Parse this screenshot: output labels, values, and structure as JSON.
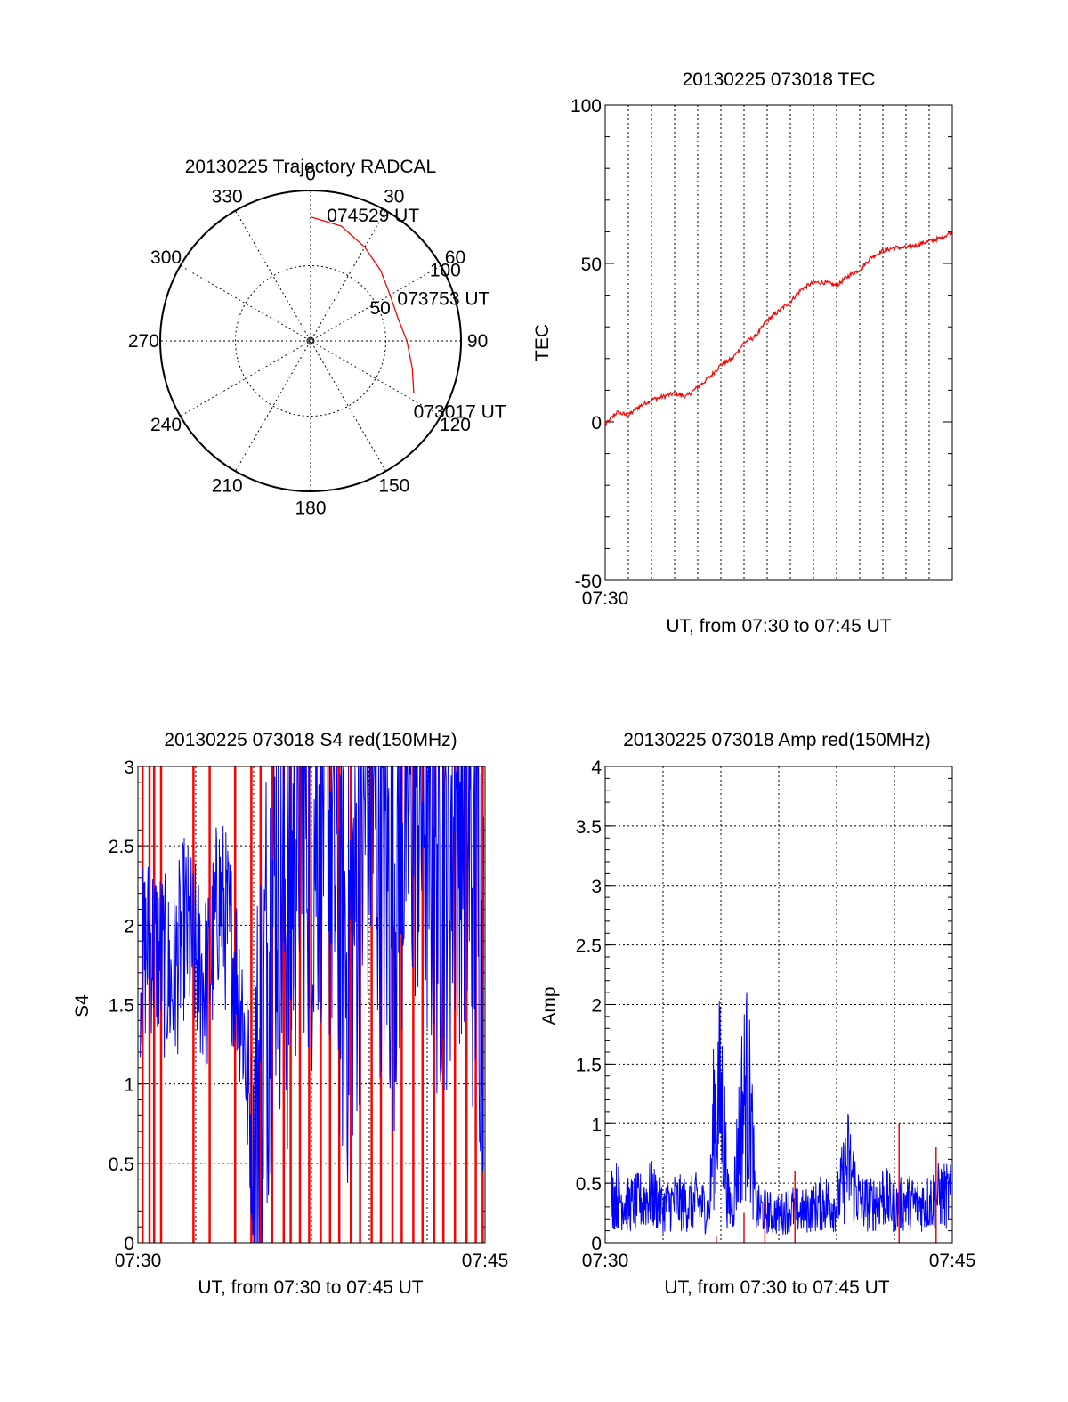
{
  "colors": {
    "axis": "#000000",
    "grid": "#000000",
    "red": "#ff0000",
    "blue": "#0000ff",
    "background": "#ffffff"
  },
  "chart_data": [
    {
      "id": "trajectory",
      "type": "polar",
      "title": "20130225 Trajectory RADCAL",
      "angle_labels": [
        {
          "angle": 0,
          "label": "0"
        },
        {
          "angle": 30,
          "label": "30"
        },
        {
          "angle": 60,
          "label": "60"
        },
        {
          "angle": 90,
          "label": "90"
        },
        {
          "angle": 120,
          "label": "120"
        },
        {
          "angle": 150,
          "label": "150"
        },
        {
          "angle": 180,
          "label": "180"
        },
        {
          "angle": 210,
          "label": "210"
        },
        {
          "angle": 240,
          "label": "240"
        },
        {
          "angle": 270,
          "label": "270"
        },
        {
          "angle": 300,
          "label": "300"
        },
        {
          "angle": 330,
          "label": "330"
        }
      ],
      "radial_labels": [
        {
          "value": 50,
          "label": "50"
        },
        {
          "value": 100,
          "label": "100"
        }
      ],
      "rmax": 100,
      "series": [
        {
          "color": "red",
          "points": [
            {
              "az": 0.0,
              "zd": 82.5
            },
            {
              "az": 15.0,
              "zd": 79.0
            },
            {
              "az": 30.0,
              "zd": 72.0
            },
            {
              "az": 45.0,
              "zd": 66.0
            },
            {
              "az": 60.0,
              "zd": 61.0
            },
            {
              "az": 75.0,
              "zd": 60.0
            },
            {
              "az": 90.0,
              "zd": 64.0
            },
            {
              "az": 105.0,
              "zd": 70.0
            },
            {
              "az": 117.0,
              "zd": 77.0
            }
          ]
        }
      ],
      "annotations": [
        {
          "label": "074529 UT",
          "az": 8.0,
          "zd": 86.0
        },
        {
          "label": "073753 UT",
          "az": 63.0,
          "zd": 66.0
        },
        {
          "label": "073017 UT",
          "az": 123.0,
          "zd": 83.0
        }
      ]
    },
    {
      "id": "tec",
      "type": "line",
      "title": "20130225 073018 TEC",
      "xlabel": "UT, from 07:30 to 07:45 UT",
      "ylabel": "TEC",
      "xlim": [
        0,
        15
      ],
      "ylim": [
        -50,
        100
      ],
      "x_unit": "minutes after 07:30 UT",
      "x_ticks": [
        {
          "value": 0,
          "label": "07:30"
        }
      ],
      "y_ticks": [
        {
          "value": -50,
          "label": "-50"
        },
        {
          "value": 0,
          "label": "0"
        },
        {
          "value": 50,
          "label": "50"
        },
        {
          "value": 100,
          "label": "100"
        }
      ],
      "grid": "vertical dotted",
      "x_gridlines": [
        1,
        2,
        3,
        4,
        5,
        6,
        7,
        8,
        9,
        10,
        11,
        12,
        13,
        14
      ],
      "series": [
        {
          "color": "red",
          "x": [
            0.0,
            0.5,
            1.0,
            1.5,
            2.0,
            2.5,
            3.0,
            3.5,
            4.0,
            4.5,
            5.0,
            5.5,
            6.0,
            6.5,
            7.0,
            7.5,
            8.0,
            8.5,
            9.0,
            9.5,
            10.0,
            10.5,
            11.0,
            11.5,
            12.0,
            12.5,
            13.0,
            13.5,
            14.0,
            14.5,
            15.0
          ],
          "y": [
            -1,
            3,
            2,
            5,
            7,
            8,
            9,
            8,
            11,
            14,
            18,
            20,
            25,
            27,
            32,
            35,
            38,
            42,
            44,
            44,
            43,
            46,
            48,
            52,
            54,
            55,
            55,
            56,
            57,
            58,
            60
          ]
        }
      ]
    },
    {
      "id": "s4",
      "type": "line",
      "title": "20130225 073018 S4 red(150MHz)",
      "xlabel": "UT, from 07:30 to 07:45 UT",
      "ylabel": "S4",
      "xlim": [
        0,
        15
      ],
      "ylim": [
        0,
        3
      ],
      "x_unit": "minutes after 07:30 UT",
      "x_ticks": [
        {
          "value": 0,
          "label": "07:30"
        },
        {
          "value": 15,
          "label": "07:45"
        }
      ],
      "y_ticks": [
        {
          "value": 0,
          "label": "0"
        },
        {
          "value": 0.5,
          "label": "0.5"
        },
        {
          "value": 1,
          "label": "1"
        },
        {
          "value": 1.5,
          "label": "1.5"
        },
        {
          "value": 2,
          "label": "2"
        },
        {
          "value": 2.5,
          "label": "2.5"
        },
        {
          "value": 3,
          "label": "3"
        }
      ],
      "grid": "dotted",
      "series": [
        {
          "color": "blue",
          "x": [
            0.0,
            0.5,
            1.0,
            1.5,
            2.0,
            2.5,
            3.0,
            3.5,
            4.0,
            4.5,
            5.0,
            5.5,
            6.0,
            6.5,
            7.0,
            7.5,
            8.0,
            8.5,
            9.0,
            9.5,
            10.0,
            10.5,
            11.0,
            11.5,
            12.0,
            12.5,
            13.0,
            13.5,
            14.0,
            14.5,
            15.0
          ],
          "y": [
            1.7,
            1.9,
            1.8,
            1.6,
            2.0,
            1.8,
            1.6,
            2.2,
            1.9,
            1.5,
            0.5,
            1.6,
            2.5,
            2.0,
            3.0,
            2.6,
            3.0,
            2.4,
            1.8,
            2.3,
            3.0,
            2.6,
            2.2,
            2.8,
            3.0,
            2.7,
            2.4,
            2.6,
            2.9,
            2.3,
            1.9
          ]
        }
      ],
      "red_spikes": {
        "color": "red",
        "x": [
          0.2,
          0.5,
          0.7,
          1.0,
          2.4,
          3.1,
          4.2,
          4.9,
          5.3,
          5.8,
          6.3,
          6.6,
          7.0,
          7.4,
          7.9,
          8.3,
          8.7,
          9.2,
          9.6,
          10.1,
          10.5,
          11.0,
          11.4,
          11.9,
          12.3,
          12.8,
          13.2,
          13.7,
          14.2,
          14.6,
          14.9
        ],
        "ymax": 3
      }
    },
    {
      "id": "amp",
      "type": "line",
      "title": "20130225 073018 Amp red(150MHz)",
      "xlabel": "UT, from 07:30 to 07:45 UT",
      "ylabel": "Amp",
      "xlim": [
        0,
        15
      ],
      "ylim": [
        0,
        4
      ],
      "x_unit": "minutes after 07:30 UT",
      "x_ticks": [
        {
          "value": 0,
          "label": "07:30"
        },
        {
          "value": 15,
          "label": "07:45"
        }
      ],
      "y_ticks": [
        {
          "value": 0,
          "label": "0"
        },
        {
          "value": 0.5,
          "label": "0.5"
        },
        {
          "value": 1,
          "label": "1"
        },
        {
          "value": 1.5,
          "label": "1.5"
        },
        {
          "value": 2,
          "label": "2"
        },
        {
          "value": 2.5,
          "label": "2.5"
        },
        {
          "value": 3,
          "label": "3"
        },
        {
          "value": 3.5,
          "label": "3.5"
        },
        {
          "value": 4,
          "label": "4"
        }
      ],
      "grid": "dotted",
      "series": [
        {
          "color": "blue",
          "x": [
            0.0,
            0.5,
            1.0,
            1.5,
            2.0,
            2.5,
            3.0,
            3.5,
            4.0,
            4.5,
            4.7,
            4.9,
            5.1,
            5.3,
            5.5,
            5.9,
            6.1,
            6.3,
            6.5,
            7.0,
            7.5,
            8.0,
            8.5,
            9.0,
            9.5,
            10.0,
            10.5,
            11.0,
            11.5,
            12.0,
            12.5,
            13.0,
            13.5,
            14.0,
            14.5,
            15.0
          ],
          "y": [
            0.6,
            0.7,
            0.55,
            0.6,
            0.7,
            0.5,
            0.6,
            0.55,
            0.6,
            0.45,
            1.8,
            2.15,
            1.9,
            0.6,
            0.5,
            1.9,
            2.25,
            1.8,
            0.5,
            0.45,
            0.4,
            0.5,
            0.45,
            0.5,
            0.6,
            0.55,
            1.15,
            0.6,
            0.55,
            0.7,
            0.5,
            0.6,
            0.55,
            0.6,
            0.7,
            0.65
          ]
        }
      ],
      "red_spikes": {
        "color": "red",
        "x": [
          4.8,
          6.0,
          6.9,
          8.2,
          12.7,
          14.3
        ],
        "y": [
          0.05,
          0.25,
          0.35,
          0.6,
          1.0,
          0.8
        ]
      }
    }
  ]
}
